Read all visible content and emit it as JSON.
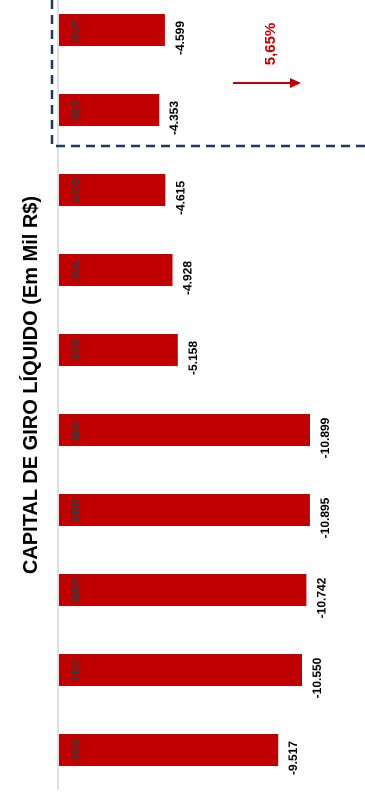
{
  "chart_data": {
    "type": "bar",
    "orientation": "horizontal-bars-rotated",
    "title": "CAPITAL DE GIRO LÍQUIDO (Em Mil R$)",
    "categories": [
      "JAN",
      "FEV",
      "MAR",
      "ABR",
      "MAI",
      "JUN",
      "JUL",
      "AGO",
      "SET",
      "OUT"
    ],
    "values": [
      -9517,
      -10550,
      -10742,
      -10895,
      -10899,
      -5158,
      -4928,
      -4615,
      -4353,
      -4599
    ],
    "value_labels": [
      "-9.517",
      "-10.550",
      "-10.742",
      "-10.895",
      "-10.899",
      "-5.158",
      "-4.928",
      "-4.615",
      "-4.353",
      "-4.599"
    ],
    "annotation": "5,65%",
    "highlight": "SET–OUT dashed box",
    "colors": {
      "bar": "#c00000",
      "annotation": "#c00000",
      "dashed_box": "#1f3864",
      "axis": "#bfbfbf"
    },
    "grid": false,
    "legend": "none"
  }
}
